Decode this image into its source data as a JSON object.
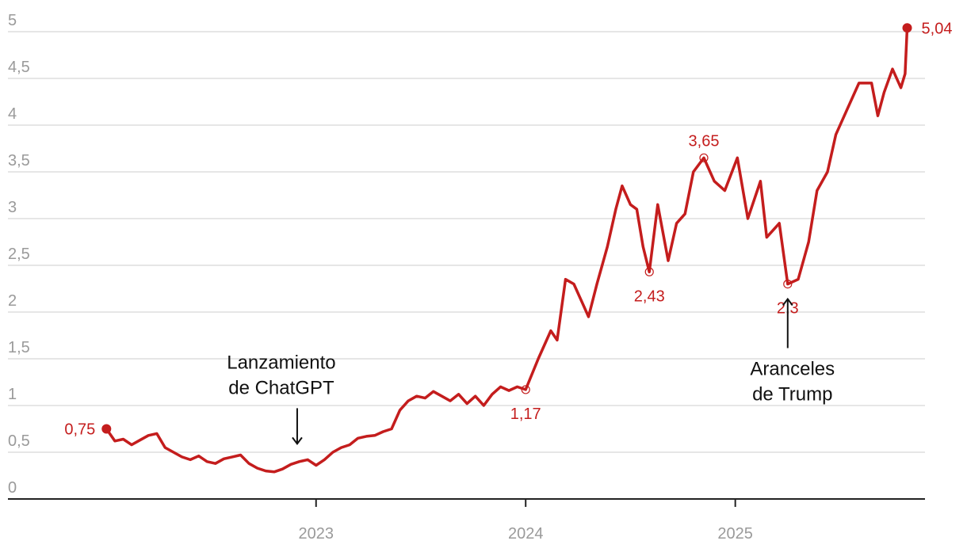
{
  "chart_data": {
    "type": "line",
    "x": [
      2022.0,
      2022.04,
      2022.08,
      2022.12,
      2022.16,
      2022.2,
      2022.24,
      2022.28,
      2022.32,
      2022.36,
      2022.4,
      2022.44,
      2022.48,
      2022.52,
      2022.56,
      2022.6,
      2022.64,
      2022.68,
      2022.72,
      2022.76,
      2022.8,
      2022.84,
      2022.88,
      2022.92,
      2022.96,
      2023.0,
      2023.04,
      2023.08,
      2023.12,
      2023.16,
      2023.2,
      2023.24,
      2023.28,
      2023.32,
      2023.36,
      2023.4,
      2023.44,
      2023.48,
      2023.52,
      2023.56,
      2023.6,
      2023.64,
      2023.68,
      2023.72,
      2023.76,
      2023.8,
      2023.84,
      2023.88,
      2023.92,
      2023.96,
      2024.0,
      2024.06,
      2024.12,
      2024.15,
      2024.19,
      2024.23,
      2024.27,
      2024.3,
      2024.34,
      2024.39,
      2024.43,
      2024.46,
      2024.5,
      2024.53,
      2024.56,
      2024.59,
      2024.63,
      2024.68,
      2024.72,
      2024.76,
      2024.8,
      2024.85,
      2024.9,
      2024.95,
      2025.01,
      2025.06,
      2025.12,
      2025.15,
      2025.21,
      2025.25,
      2025.3,
      2025.35,
      2025.39,
      2025.44,
      2025.48,
      2025.53,
      2025.59,
      2025.65,
      2025.68,
      2025.71,
      2025.75,
      2025.79,
      2025.81,
      2025.82
    ],
    "series": [
      {
        "color": "#c41d1d",
        "values": [
          0.75,
          0.62,
          0.64,
          0.58,
          0.63,
          0.68,
          0.7,
          0.55,
          0.5,
          0.45,
          0.42,
          0.46,
          0.4,
          0.38,
          0.43,
          0.45,
          0.47,
          0.38,
          0.33,
          0.3,
          0.29,
          0.32,
          0.37,
          0.4,
          0.42,
          0.36,
          0.42,
          0.5,
          0.55,
          0.58,
          0.65,
          0.67,
          0.68,
          0.72,
          0.75,
          0.95,
          1.05,
          1.1,
          1.08,
          1.15,
          1.1,
          1.05,
          1.12,
          1.02,
          1.1,
          1.0,
          1.12,
          1.2,
          1.16,
          1.2,
          1.17,
          1.5,
          1.8,
          1.7,
          2.35,
          2.3,
          2.1,
          1.95,
          2.3,
          2.7,
          3.1,
          3.35,
          3.15,
          3.1,
          2.7,
          2.43,
          3.15,
          2.55,
          2.95,
          3.05,
          3.5,
          3.65,
          3.4,
          3.3,
          3.65,
          3.0,
          3.4,
          2.8,
          2.95,
          2.3,
          2.35,
          2.75,
          3.3,
          3.5,
          3.9,
          4.15,
          4.45,
          4.45,
          4.1,
          4.35,
          4.6,
          4.4,
          4.55,
          5.04
        ]
      }
    ],
    "point_labels": [
      {
        "x": 2022.0,
        "y": 0.75,
        "label": "0,75",
        "marker": "filled",
        "position": "left"
      },
      {
        "x": 2024.0,
        "y": 1.17,
        "label": "1,17",
        "marker": "open",
        "position": "below"
      },
      {
        "x": 2024.59,
        "y": 2.43,
        "label": "2,43",
        "marker": "open",
        "position": "below"
      },
      {
        "x": 2024.85,
        "y": 3.65,
        "label": "3,65",
        "marker": "open",
        "position": "above"
      },
      {
        "x": 2025.25,
        "y": 2.3,
        "label": "2,3",
        "marker": "open",
        "position": "below"
      },
      {
        "x": 2025.82,
        "y": 5.04,
        "label": "5,04",
        "marker": "filled",
        "position": "right"
      }
    ],
    "annotations": [
      {
        "x": 2022.91,
        "y": 0.59,
        "lines": [
          "Lanzamiento",
          "de ChatGPT"
        ],
        "arrow": "down"
      },
      {
        "x": 2025.25,
        "y": 2.14,
        "lines": [
          "Aranceles",
          "de Trump"
        ],
        "arrow": "up"
      }
    ],
    "xlim": [
      2021.53,
      2025.905
    ],
    "xticks": [
      2023,
      2024,
      2025
    ],
    "ylim": [
      0,
      5
    ],
    "yticks": [
      0,
      {
        "value": 0.5,
        "label": "0,5"
      },
      1,
      {
        "value": 1.5,
        "label": "1,5"
      },
      2,
      {
        "value": 2.5,
        "label": "2,5"
      },
      3,
      {
        "value": 3.5,
        "label": "3,5"
      },
      4,
      {
        "value": 4.5,
        "label": "4,5"
      },
      5
    ],
    "grid": true
  }
}
